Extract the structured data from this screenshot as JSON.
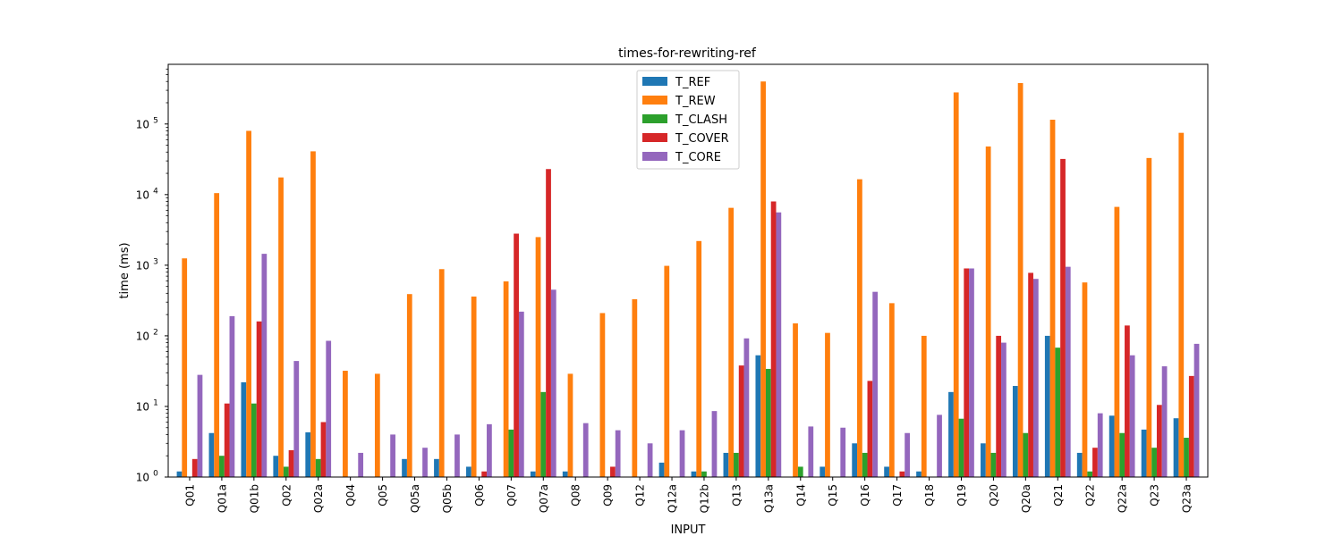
{
  "chart_data": {
    "type": "bar",
    "title": "times-for-rewriting-ref",
    "xlabel": "INPUT",
    "ylabel": "time (ms)",
    "yscale": "log",
    "ylim": [
      1,
      700000
    ],
    "yticks": [
      1,
      10,
      100,
      1000,
      10000,
      100000
    ],
    "ytick_labels": [
      {
        "base": "10",
        "exp": "0"
      },
      {
        "base": "10",
        "exp": "1"
      },
      {
        "base": "10",
        "exp": "2"
      },
      {
        "base": "10",
        "exp": "3"
      },
      {
        "base": "10",
        "exp": "4"
      },
      {
        "base": "10",
        "exp": "5"
      }
    ],
    "legend_position": "top-center",
    "grid": false,
    "categories": [
      "Q01",
      "Q01a",
      "Q01b",
      "Q02",
      "Q02a",
      "Q04",
      "Q05",
      "Q05a",
      "Q05b",
      "Q06",
      "Q07",
      "Q07a",
      "Q08",
      "Q09",
      "Q12",
      "Q12a",
      "Q12b",
      "Q13",
      "Q13a",
      "Q14",
      "Q15",
      "Q16",
      "Q17",
      "Q18",
      "Q19",
      "Q20",
      "Q20a",
      "Q21",
      "Q22",
      "Q22a",
      "Q23",
      "Q23a"
    ],
    "series": [
      {
        "name": "T_REF",
        "color": "#1f77b4",
        "values": [
          1.2,
          4.2,
          22,
          2.0,
          4.3,
          1,
          1,
          1.8,
          1.8,
          1.4,
          1,
          1.2,
          1.2,
          1,
          1,
          1.6,
          1.2,
          2.2,
          53,
          1,
          1.4,
          3.0,
          1.4,
          1.2,
          16,
          3.0,
          19.5,
          100,
          2.2,
          7.4,
          4.7,
          6.8
        ]
      },
      {
        "name": "T_REW",
        "color": "#ff7f0e",
        "values": [
          1250,
          10500,
          80000,
          17500,
          41000,
          32,
          29,
          390,
          880,
          360,
          590,
          2500,
          29,
          210,
          330,
          980,
          2200,
          6500,
          400000,
          150,
          110,
          16500,
          290,
          100,
          280000,
          48000,
          380000,
          115000,
          570,
          6700,
          33000,
          75000
        ]
      },
      {
        "name": "T_CLASH",
        "color": "#2ca02c",
        "values": [
          1,
          2.0,
          11,
          1.4,
          1.8,
          1,
          1,
          1,
          1,
          1,
          4.7,
          16,
          1,
          1,
          1,
          1,
          1.2,
          2.2,
          34,
          1.4,
          1,
          2.2,
          1,
          1,
          6.7,
          2.2,
          4.2,
          68,
          1.2,
          4.2,
          2.6,
          3.6
        ]
      },
      {
        "name": "T_COVER",
        "color": "#d62728",
        "values": [
          1.8,
          11,
          160,
          2.4,
          6.0,
          1,
          1,
          1,
          1,
          1.2,
          2800,
          23000,
          1,
          1.4,
          1,
          1,
          1,
          38,
          8000,
          1,
          1,
          23,
          1.2,
          1,
          900,
          100,
          780,
          32000,
          2.6,
          140,
          10.5,
          27
        ]
      },
      {
        "name": "T_CORE",
        "color": "#9467bd",
        "values": [
          28,
          190,
          1450,
          44,
          85,
          2.2,
          4.0,
          2.6,
          4.0,
          5.6,
          220,
          450,
          5.8,
          4.6,
          3.0,
          4.6,
          8.6,
          92,
          5600,
          5.2,
          5.0,
          420,
          4.2,
          7.6,
          900,
          80,
          640,
          950,
          8.0,
          53,
          37,
          77
        ]
      }
    ]
  }
}
